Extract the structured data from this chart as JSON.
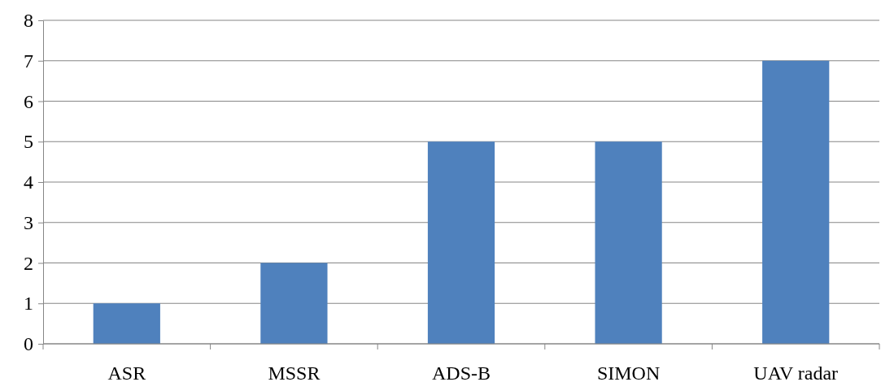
{
  "chart_data": {
    "type": "bar",
    "categories": [
      "ASR",
      "MSSR",
      "ADS-B",
      "SIMON",
      "UAV radar"
    ],
    "values": [
      1,
      2,
      5,
      5,
      7
    ],
    "color": "#4f81bd",
    "ylim": [
      0,
      8
    ],
    "yticks": [
      0,
      1,
      2,
      3,
      4,
      5,
      6,
      7,
      8
    ],
    "grid": "y"
  }
}
